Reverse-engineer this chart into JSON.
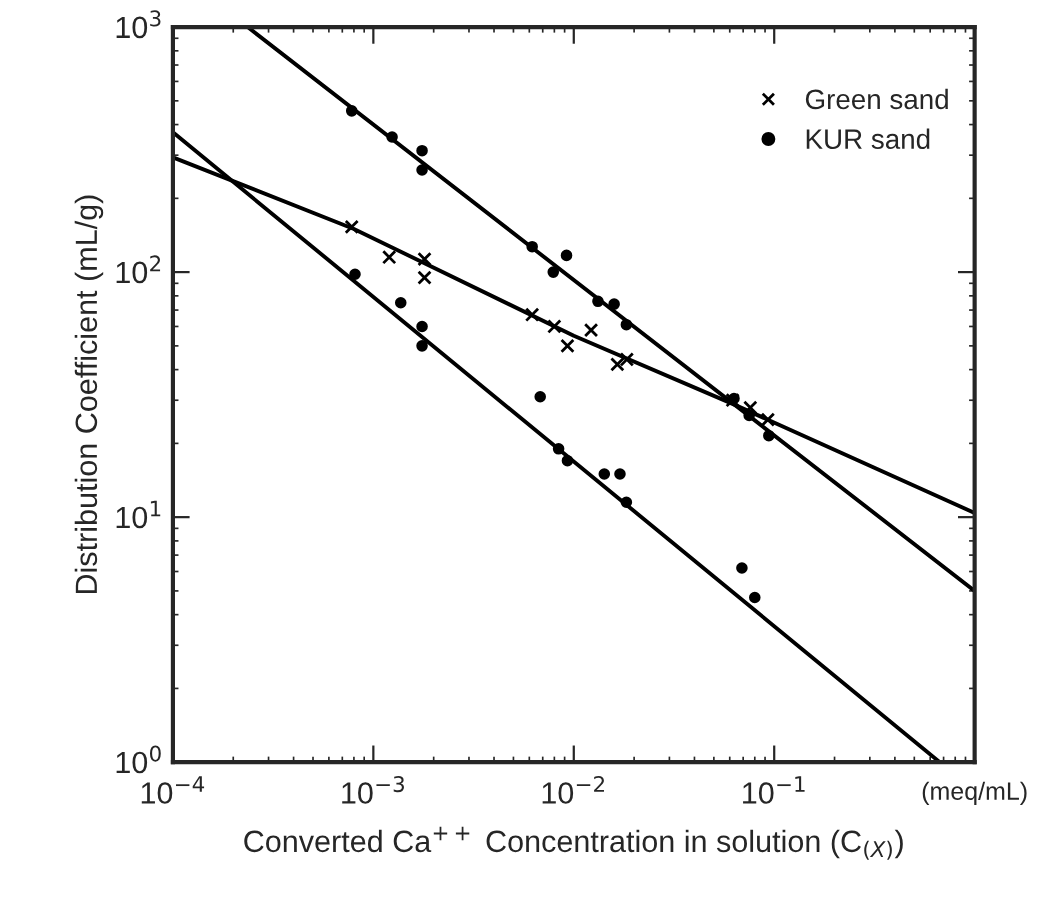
{
  "chart_data": {
    "type": "scatter",
    "xlabel": "Converted Ca$^{++}$ Concentration in solution (C$_{(X)}$)",
    "ylabel": "Distribution Coefficient (mL/g)",
    "log": "xy",
    "xlim": [
      0.0001,
      1
    ],
    "ylim": [
      1,
      1000
    ],
    "xticks": [
      {
        "value": 0.0001,
        "label": "10$^{−4}$"
      },
      {
        "value": 0.001,
        "label": "10$^{−3}$"
      },
      {
        "value": 0.01,
        "label": "10$^{−2}$"
      },
      {
        "value": 0.1,
        "label": "10$^{−1}$"
      },
      {
        "value": 1,
        "label": "(meq/mL)"
      }
    ],
    "yticks": [
      {
        "value": 1,
        "label": "10$^{0}$"
      },
      {
        "value": 10,
        "label": "10$^{1}$"
      },
      {
        "value": 100,
        "label": "10$^{2}$"
      },
      {
        "value": 1000,
        "label": "10$^{3}$"
      }
    ],
    "grid": false,
    "legend": "top right",
    "series": [
      {
        "color": "#000000",
        "marker": "circle",
        "x": [
          0.00081,
          0.00137,
          0.00175,
          0.00175,
          0.0068,
          0.0093,
          0.0142,
          0.017,
          0.0183
        ],
        "values": [
          98,
          75,
          60,
          50,
          31,
          17,
          15,
          15,
          11.5
        ]
      },
      {
        "name": "Green sand",
        "color": "#000000",
        "marker": "cross",
        "x": [
          0.00078,
          0.0012,
          0.0018,
          0.0018,
          0.0062,
          0.008,
          0.0093,
          0.0122,
          0.0165,
          0.0184,
          0.062,
          0.076,
          0.093
        ],
        "values": [
          153,
          115,
          113,
          95,
          67,
          60,
          50,
          58,
          42,
          44,
          30,
          28,
          25
        ]
      },
      {
        "name": "KUR sand",
        "color": "#000000",
        "marker": "circle",
        "x": [
          0.00078,
          0.00124,
          0.00175,
          0.00175,
          0.0062,
          0.0079,
          0.0092,
          0.0132,
          0.0159,
          0.0183,
          0.0084,
          0.063,
          0.069,
          0.075,
          0.08,
          0.094
        ],
        "values": [
          455,
          356,
          313,
          261,
          127,
          100,
          117,
          76,
          74,
          61,
          19,
          30.5,
          6.2,
          26,
          4.7,
          21.5
        ]
      },
      {
        "type": "line",
        "color": "#000000",
        "x": [
          0.0001,
          0.67
        ],
        "values": [
          372,
          1
        ]
      },
      {
        "type": "line",
        "color": "#000000",
        "x": [
          0.0001,
          0.0008,
          0.01,
          0.062,
          1
        ],
        "values": [
          294,
          150,
          55,
          29,
          10.4
        ]
      },
      {
        "type": "line",
        "color": "#000000",
        "x": [
          0.000236,
          1
        ],
        "values": [
          1000,
          5
        ]
      }
    ]
  }
}
